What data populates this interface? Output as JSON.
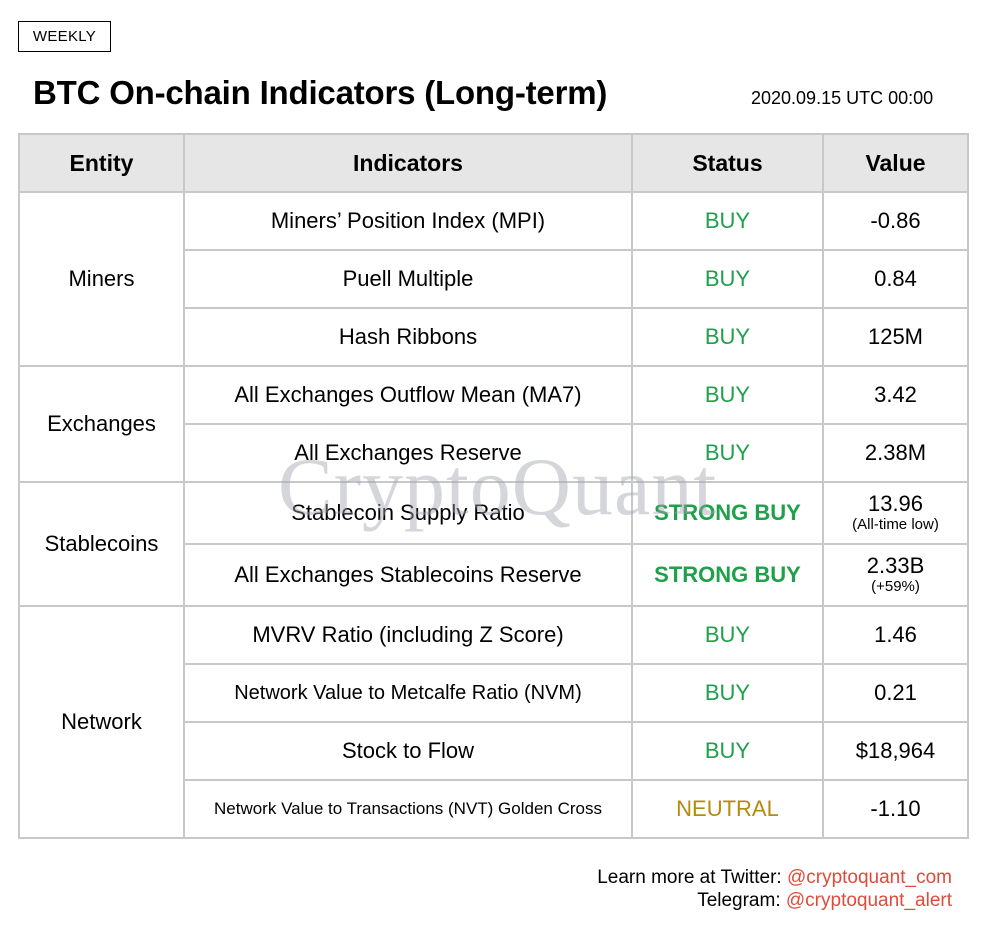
{
  "badge": "WEEKLY",
  "title": "BTC On-chain Indicators (Long-term)",
  "timestamp": "2020.09.15 UTC 00:00",
  "table": {
    "headers": [
      "Entity",
      "Indicators",
      "Status",
      "Value"
    ],
    "groups": [
      {
        "entity": "Miners",
        "rows": [
          {
            "indicator": "Miners’ Position Index (MPI)",
            "status": "BUY",
            "value": "-0.86"
          },
          {
            "indicator": "Puell Multiple",
            "status": "BUY",
            "value": "0.84"
          },
          {
            "indicator": "Hash Ribbons",
            "status": "BUY",
            "value": "125M"
          }
        ]
      },
      {
        "entity": "Exchanges",
        "rows": [
          {
            "indicator": "All Exchanges Outflow Mean (MA7)",
            "status": "BUY",
            "value": "3.42"
          },
          {
            "indicator": "All Exchanges Reserve",
            "status": "BUY",
            "value": "2.38M"
          }
        ]
      },
      {
        "entity": "Stablecoins",
        "rows": [
          {
            "indicator": "Stablecoin Supply Ratio",
            "status": "STRONG BUY",
            "value": "13.96",
            "note": "(All-time low)"
          },
          {
            "indicator": "All Exchanges Stablecoins Reserve",
            "status": "STRONG BUY",
            "value": "2.33B",
            "note": "(+59%)"
          }
        ]
      },
      {
        "entity": "Network",
        "rows": [
          {
            "indicator": "MVRV Ratio (including Z Score)",
            "status": "BUY",
            "value": "1.46"
          },
          {
            "indicator": "Network Value to Metcalfe Ratio (NVM)",
            "status": "BUY",
            "value": "0.21"
          },
          {
            "indicator": "Stock to Flow",
            "status": "BUY",
            "value": "$18,964"
          },
          {
            "indicator": "Network Value to Transactions (NVT) Golden Cross",
            "status": "NEUTRAL",
            "value": "-1.10"
          }
        ]
      }
    ]
  },
  "watermark": "CryptoQuant",
  "footer": {
    "twitter_label": "Learn more at Twitter: ",
    "twitter_handle": "@cryptoquant_com",
    "telegram_label": "Telegram: ",
    "telegram_handle": "@cryptoquant_alert"
  },
  "colors": {
    "buy": "#1fa04a",
    "neutral": "#b58a10",
    "link": "#e04a3a",
    "header_bg": "#e6e6e6",
    "grid": "#c8c8c8"
  }
}
